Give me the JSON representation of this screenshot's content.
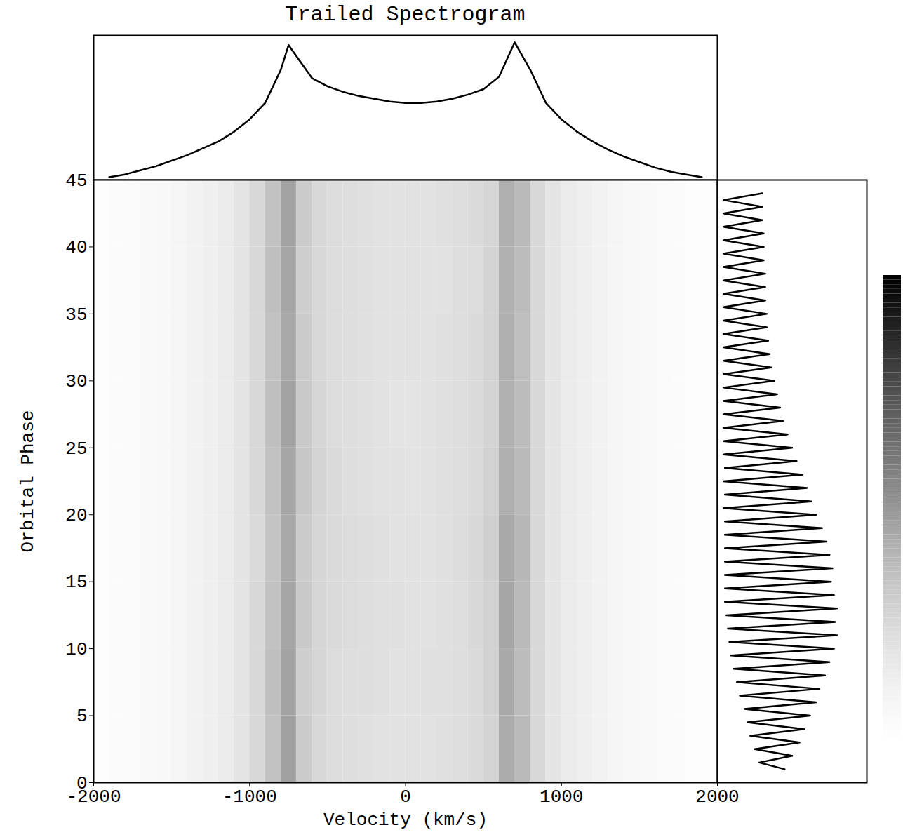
{
  "chart_data": [
    {
      "type": "line",
      "title": "Trailed Spectrogram",
      "x": [
        -1900,
        -1800,
        -1700,
        -1600,
        -1500,
        -1400,
        -1300,
        -1200,
        -1100,
        -1000,
        -900,
        -800,
        -750,
        -700,
        -600,
        -500,
        -400,
        -300,
        -200,
        -100,
        0,
        100,
        200,
        300,
        400,
        500,
        600,
        700,
        800,
        900,
        1000,
        1100,
        1200,
        1300,
        1400,
        1500,
        1600,
        1700,
        1800,
        1900
      ],
      "values": [
        0.02,
        0.04,
        0.07,
        0.1,
        0.14,
        0.18,
        0.23,
        0.28,
        0.35,
        0.44,
        0.56,
        0.8,
        0.98,
        0.9,
        0.74,
        0.68,
        0.64,
        0.61,
        0.59,
        0.57,
        0.56,
        0.56,
        0.57,
        0.59,
        0.62,
        0.66,
        0.75,
        1.0,
        0.8,
        0.56,
        0.44,
        0.35,
        0.28,
        0.22,
        0.17,
        0.13,
        0.09,
        0.06,
        0.04,
        0.02
      ],
      "xlim": [
        -2000,
        2000
      ],
      "ylim": [
        0,
        1.05
      ],
      "tick_labels": false,
      "color": "#000000"
    },
    {
      "type": "heatmap",
      "x_label": "Velocity (km/s)",
      "y_label": "Orbital Phase",
      "x_edges": [
        -2000,
        -1900,
        -1800,
        -1700,
        -1600,
        -1500,
        -1400,
        -1300,
        -1200,
        -1100,
        -1000,
        -900,
        -800,
        -700,
        -600,
        -500,
        -400,
        -300,
        -200,
        -100,
        0,
        100,
        200,
        300,
        400,
        500,
        600,
        700,
        800,
        900,
        1000,
        1100,
        1200,
        1300,
        1400,
        1500,
        1600,
        1700,
        1800,
        1900,
        2000
      ],
      "y_edges": [
        0,
        5,
        10,
        15,
        20,
        25,
        30,
        35,
        40,
        45
      ],
      "cells": [
        [
          0.02,
          0.03,
          0.04,
          0.05,
          0.06,
          0.08,
          0.1,
          0.12,
          0.15,
          0.19,
          0.25,
          0.35,
          0.47,
          0.31,
          0.25,
          0.23,
          0.22,
          0.21,
          0.2,
          0.2,
          0.2,
          0.2,
          0.21,
          0.22,
          0.24,
          0.27,
          0.43,
          0.38,
          0.25,
          0.19,
          0.15,
          0.12,
          0.1,
          0.08,
          0.06,
          0.05,
          0.04,
          0.03,
          0.02,
          0.02
        ],
        [
          0.02,
          0.03,
          0.04,
          0.05,
          0.06,
          0.08,
          0.1,
          0.12,
          0.15,
          0.19,
          0.25,
          0.36,
          0.46,
          0.3,
          0.26,
          0.23,
          0.22,
          0.22,
          0.21,
          0.2,
          0.2,
          0.21,
          0.21,
          0.22,
          0.24,
          0.28,
          0.44,
          0.37,
          0.25,
          0.19,
          0.15,
          0.12,
          0.1,
          0.08,
          0.06,
          0.05,
          0.04,
          0.03,
          0.02,
          0.02
        ],
        [
          0.02,
          0.03,
          0.04,
          0.05,
          0.06,
          0.08,
          0.1,
          0.12,
          0.15,
          0.19,
          0.25,
          0.35,
          0.45,
          0.32,
          0.26,
          0.24,
          0.23,
          0.22,
          0.21,
          0.21,
          0.2,
          0.2,
          0.21,
          0.22,
          0.25,
          0.28,
          0.45,
          0.38,
          0.25,
          0.19,
          0.15,
          0.12,
          0.1,
          0.08,
          0.06,
          0.05,
          0.04,
          0.03,
          0.02,
          0.02
        ],
        [
          0.02,
          0.03,
          0.04,
          0.05,
          0.06,
          0.08,
          0.1,
          0.12,
          0.15,
          0.19,
          0.24,
          0.34,
          0.44,
          0.31,
          0.26,
          0.24,
          0.23,
          0.22,
          0.21,
          0.2,
          0.2,
          0.2,
          0.21,
          0.23,
          0.25,
          0.29,
          0.44,
          0.39,
          0.25,
          0.19,
          0.15,
          0.12,
          0.1,
          0.08,
          0.06,
          0.05,
          0.04,
          0.03,
          0.02,
          0.02
        ],
        [
          0.02,
          0.03,
          0.04,
          0.05,
          0.06,
          0.08,
          0.1,
          0.12,
          0.15,
          0.19,
          0.25,
          0.35,
          0.45,
          0.33,
          0.27,
          0.24,
          0.22,
          0.21,
          0.2,
          0.2,
          0.19,
          0.2,
          0.21,
          0.22,
          0.24,
          0.28,
          0.42,
          0.38,
          0.25,
          0.19,
          0.15,
          0.12,
          0.1,
          0.08,
          0.06,
          0.05,
          0.04,
          0.03,
          0.02,
          0.02
        ],
        [
          0.02,
          0.03,
          0.04,
          0.05,
          0.06,
          0.08,
          0.1,
          0.12,
          0.15,
          0.19,
          0.25,
          0.36,
          0.46,
          0.32,
          0.26,
          0.23,
          0.22,
          0.21,
          0.2,
          0.19,
          0.19,
          0.2,
          0.21,
          0.22,
          0.24,
          0.27,
          0.41,
          0.37,
          0.25,
          0.19,
          0.15,
          0.12,
          0.1,
          0.08,
          0.06,
          0.05,
          0.04,
          0.03,
          0.02,
          0.02
        ],
        [
          0.02,
          0.03,
          0.04,
          0.05,
          0.06,
          0.08,
          0.1,
          0.12,
          0.15,
          0.19,
          0.25,
          0.35,
          0.44,
          0.31,
          0.25,
          0.23,
          0.22,
          0.21,
          0.2,
          0.2,
          0.2,
          0.2,
          0.21,
          0.22,
          0.24,
          0.27,
          0.42,
          0.36,
          0.25,
          0.19,
          0.15,
          0.12,
          0.1,
          0.08,
          0.06,
          0.05,
          0.04,
          0.03,
          0.02,
          0.02
        ],
        [
          0.02,
          0.03,
          0.04,
          0.05,
          0.06,
          0.08,
          0.1,
          0.12,
          0.15,
          0.19,
          0.25,
          0.36,
          0.45,
          0.3,
          0.25,
          0.23,
          0.22,
          0.21,
          0.2,
          0.2,
          0.2,
          0.2,
          0.2,
          0.22,
          0.23,
          0.27,
          0.41,
          0.37,
          0.25,
          0.19,
          0.15,
          0.12,
          0.1,
          0.08,
          0.06,
          0.05,
          0.04,
          0.03,
          0.02,
          0.02
        ],
        [
          0.02,
          0.03,
          0.04,
          0.05,
          0.06,
          0.08,
          0.1,
          0.12,
          0.15,
          0.19,
          0.25,
          0.35,
          0.46,
          0.31,
          0.25,
          0.23,
          0.22,
          0.21,
          0.2,
          0.2,
          0.2,
          0.2,
          0.21,
          0.22,
          0.24,
          0.26,
          0.42,
          0.38,
          0.25,
          0.19,
          0.15,
          0.12,
          0.1,
          0.08,
          0.06,
          0.05,
          0.04,
          0.03,
          0.02,
          0.02
        ]
      ],
      "xlim": [
        -2000,
        2000
      ],
      "ylim": [
        0,
        45
      ],
      "xticks": [
        -2000,
        -1000,
        0,
        1000,
        2000
      ],
      "yticks": [
        0,
        5,
        10,
        15,
        20,
        25,
        30,
        35,
        40,
        45
      ],
      "color": "greys",
      "color_range": [
        0,
        1
      ]
    },
    {
      "type": "line",
      "orientation": "horizontal",
      "y": [
        1,
        1.5,
        2,
        2.5,
        3,
        3.5,
        4,
        4.5,
        5,
        5.5,
        6,
        6.5,
        7,
        7.5,
        8,
        8.5,
        9,
        9.5,
        10,
        10.5,
        11,
        11.5,
        12,
        12.5,
        13,
        13.5,
        14,
        14.5,
        15,
        15.5,
        16,
        16.5,
        17,
        17.5,
        18,
        18.5,
        19,
        19.5,
        20,
        20.5,
        21,
        21.5,
        22,
        22.5,
        23,
        23.5,
        24,
        24.5,
        25,
        25.5,
        26,
        26.5,
        27,
        27.5,
        28,
        28.5,
        29,
        29.5,
        30,
        30.5,
        31,
        31.5,
        32,
        32.5,
        33,
        33.5,
        34,
        34.5,
        35,
        35.5,
        36,
        36.5,
        37,
        37.5,
        38,
        38.5,
        39,
        39.5,
        40,
        40.5,
        41,
        41.5,
        42,
        42.5,
        43,
        43.5,
        44
      ],
      "values": [
        0.45,
        0.28,
        0.5,
        0.25,
        0.55,
        0.22,
        0.58,
        0.2,
        0.62,
        0.18,
        0.66,
        0.15,
        0.68,
        0.13,
        0.72,
        0.11,
        0.75,
        0.09,
        0.78,
        0.08,
        0.8,
        0.07,
        0.79,
        0.06,
        0.8,
        0.05,
        0.78,
        0.05,
        0.76,
        0.05,
        0.77,
        0.05,
        0.75,
        0.05,
        0.73,
        0.05,
        0.7,
        0.05,
        0.66,
        0.04,
        0.63,
        0.05,
        0.6,
        0.04,
        0.57,
        0.05,
        0.53,
        0.04,
        0.5,
        0.04,
        0.47,
        0.04,
        0.44,
        0.04,
        0.42,
        0.04,
        0.4,
        0.04,
        0.38,
        0.04,
        0.36,
        0.04,
        0.35,
        0.04,
        0.34,
        0.04,
        0.33,
        0.04,
        0.33,
        0.04,
        0.32,
        0.04,
        0.32,
        0.04,
        0.32,
        0.04,
        0.31,
        0.04,
        0.31,
        0.04,
        0.31,
        0.04,
        0.3,
        0.04,
        0.3,
        0.04,
        0.3
      ],
      "xlim": [
        0,
        1
      ],
      "ylim": [
        0,
        45
      ],
      "tick_labels": false,
      "color": "#000000"
    }
  ]
}
